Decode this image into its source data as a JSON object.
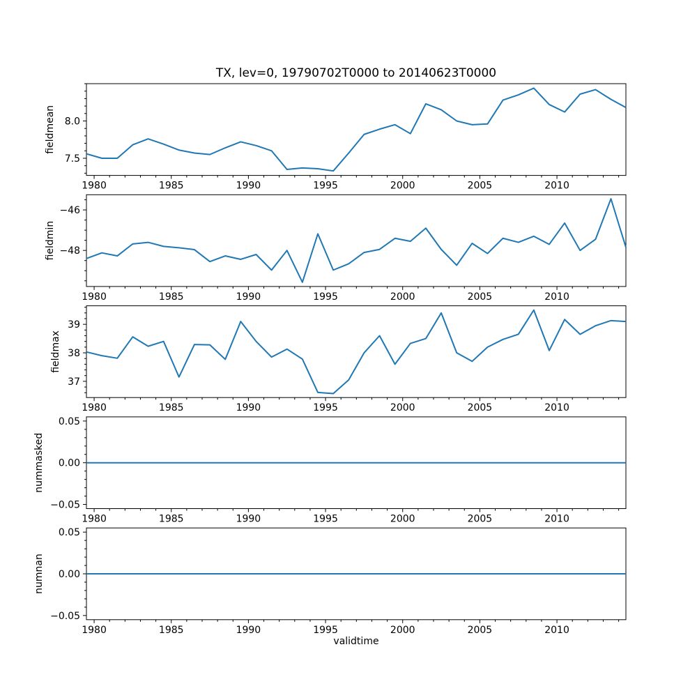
{
  "chart_data": {
    "type": "line",
    "title": "TX, lev=0, 19790702T0000 to 20140623T0000",
    "xlabel": "validtime",
    "line_color": "#1f77b4",
    "background_color": "#ffffff",
    "grid": false,
    "legend_position": "none",
    "x": [
      1979.5,
      1980.5,
      1981.5,
      1982.5,
      1983.5,
      1984.5,
      1985.5,
      1986.5,
      1987.5,
      1988.5,
      1989.5,
      1990.5,
      1991.5,
      1992.5,
      1993.5,
      1994.5,
      1995.5,
      1996.5,
      1997.5,
      1998.5,
      1999.5,
      2000.5,
      2001.5,
      2002.5,
      2003.5,
      2004.5,
      2005.5,
      2006.5,
      2007.5,
      2008.5,
      2009.5,
      2010.5,
      2011.5,
      2012.5,
      2013.5,
      2014.47
    ],
    "xlim": [
      1979.5,
      2014.47
    ],
    "xticks": [
      1980,
      1985,
      1990,
      1995,
      2000,
      2005,
      2010
    ],
    "xtick_labels": [
      "1980",
      "1985",
      "1990",
      "1995",
      "2000",
      "2005",
      "2010"
    ],
    "x_minor_step": 1,
    "subplots": [
      {
        "ylabel": "fieldmean",
        "values": [
          7.56,
          7.5,
          7.5,
          7.68,
          7.76,
          7.69,
          7.61,
          7.57,
          7.55,
          7.64,
          7.72,
          7.67,
          7.6,
          7.35,
          7.37,
          7.36,
          7.33,
          7.57,
          7.82,
          7.89,
          7.95,
          7.83,
          8.23,
          8.15,
          8.0,
          7.95,
          7.96,
          8.28,
          8.35,
          8.44,
          8.22,
          8.12,
          8.36,
          8.42,
          8.29,
          8.18
        ],
        "ylim": [
          7.27,
          8.5
        ],
        "yticks": [
          7.5,
          8.0
        ],
        "ytick_labels": [
          "7.5",
          "8.0"
        ],
        "y_minor_step": 0.1
      },
      {
        "ylabel": "fieldmin",
        "values": [
          -48.4,
          -48.12,
          -48.27,
          -47.68,
          -47.6,
          -47.8,
          -47.87,
          -47.96,
          -48.55,
          -48.27,
          -48.44,
          -48.2,
          -48.97,
          -48.0,
          -49.57,
          -47.18,
          -48.97,
          -48.66,
          -48.1,
          -47.95,
          -47.4,
          -47.55,
          -46.9,
          -47.95,
          -48.73,
          -47.65,
          -48.15,
          -47.4,
          -47.6,
          -47.3,
          -47.7,
          -46.65,
          -48.0,
          -47.45,
          -45.45,
          -47.85
        ],
        "ylim": [
          -49.78,
          -45.25
        ],
        "yticks": [
          -48,
          -46
        ],
        "ytick_labels": [
          "−48",
          "−46"
        ],
        "y_minor_step": 0.5
      },
      {
        "ylabel": "fieldmax",
        "values": [
          38.03,
          37.9,
          37.81,
          38.56,
          38.23,
          38.4,
          37.15,
          38.29,
          38.28,
          37.77,
          39.1,
          38.4,
          37.85,
          38.13,
          37.78,
          36.61,
          36.57,
          37.05,
          38.0,
          38.6,
          37.6,
          38.33,
          38.5,
          39.4,
          38.0,
          37.7,
          38.2,
          38.47,
          38.65,
          39.5,
          38.08,
          39.17,
          38.65,
          38.95,
          39.13,
          39.1
        ],
        "ylim": [
          36.43,
          39.65
        ],
        "yticks": [
          37,
          38,
          39
        ],
        "ytick_labels": [
          "37",
          "38",
          "39"
        ],
        "y_minor_step": 0.2
      },
      {
        "ylabel": "nummasked",
        "values": [
          0,
          0,
          0,
          0,
          0,
          0,
          0,
          0,
          0,
          0,
          0,
          0,
          0,
          0,
          0,
          0,
          0,
          0,
          0,
          0,
          0,
          0,
          0,
          0,
          0,
          0,
          0,
          0,
          0,
          0,
          0,
          0,
          0,
          0,
          0,
          0
        ],
        "ylim": [
          -0.055,
          0.055
        ],
        "yticks": [
          -0.05,
          0.0,
          0.05
        ],
        "ytick_labels": [
          "−0.05",
          "0.00",
          "0.05"
        ],
        "y_minor_step": 0.01
      },
      {
        "ylabel": "numnan",
        "values": [
          0,
          0,
          0,
          0,
          0,
          0,
          0,
          0,
          0,
          0,
          0,
          0,
          0,
          0,
          0,
          0,
          0,
          0,
          0,
          0,
          0,
          0,
          0,
          0,
          0,
          0,
          0,
          0,
          0,
          0,
          0,
          0,
          0,
          0,
          0,
          0
        ],
        "ylim": [
          -0.055,
          0.055
        ],
        "yticks": [
          -0.05,
          0.0,
          0.05
        ],
        "ytick_labels": [
          "−0.05",
          "0.00",
          "0.05"
        ],
        "y_minor_step": 0.01
      }
    ]
  }
}
